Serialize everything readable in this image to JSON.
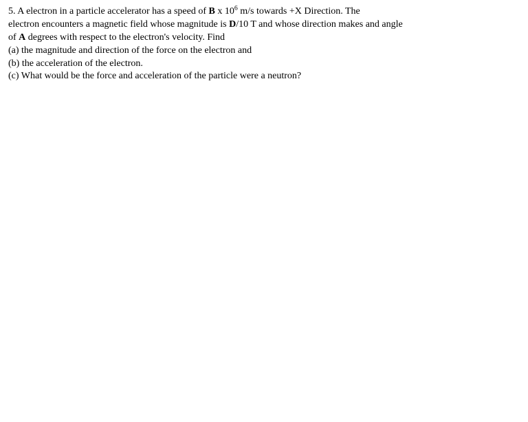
{
  "problem": {
    "number": "5.",
    "line1_a": "  A electron in a particle accelerator has a speed of ",
    "line1_b": "B",
    "line1_c": " x 10",
    "line1_sup": "6",
    "line1_d": " m/s towards +X  Direction. The",
    "line2_a": "electron encounters a magnetic field whose magnitude is ",
    "line2_b": "D",
    "line2_c": "/10 T  and whose direction makes and angle",
    "line3_a": "of  ",
    "line3_b": "A",
    "line3_c": " degrees with respect to the  electron's velocity. Find",
    "line4": "(a) the magnitude and direction of the force on the electron and",
    "line5": "(b) the acceleration of the electron.",
    "line6": "(c) What would be the force and acceleration of the particle were a neutron?"
  }
}
